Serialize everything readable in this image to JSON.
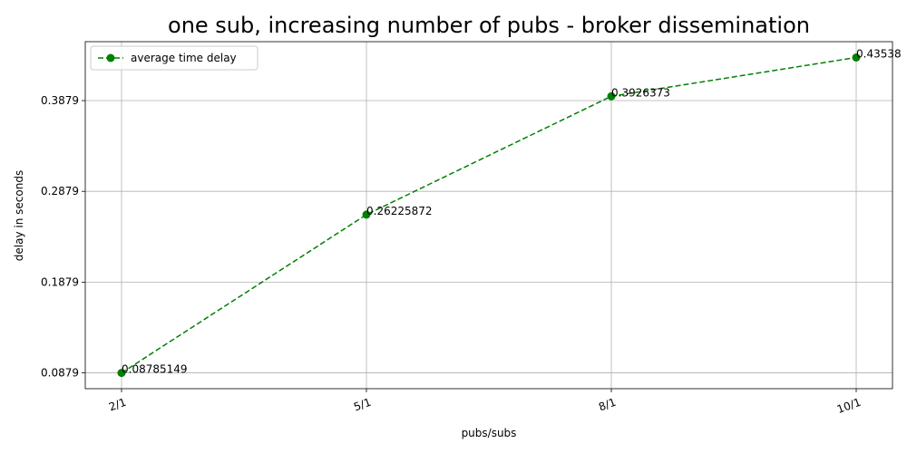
{
  "chart_data": {
    "type": "line",
    "title": "one sub, increasing number of pubs - broker dissemination",
    "xlabel": "pubs/subs",
    "ylabel": "delay in seconds",
    "categories": [
      "2/1",
      "5/1",
      "8/1",
      "10/1"
    ],
    "series": [
      {
        "name": "average time delay",
        "values": [
          0.08785149,
          0.26225872,
          0.3926373,
          0.43538
        ],
        "labels": [
          "0.08785149",
          "0.26225872",
          "0.3926373",
          "0.43538"
        ],
        "color": "#008000",
        "line_style": "dashed",
        "marker": "circle"
      }
    ],
    "yticks": [
      0.0879,
      0.1879,
      0.2879,
      0.3879
    ],
    "ytick_labels": [
      "0.0879",
      "0.1879",
      "0.2879",
      "0.3879"
    ],
    "ylim": [
      0.0705,
      0.4528
    ],
    "grid": true,
    "legend_position": "top-left",
    "xtick_rotation": -20
  }
}
